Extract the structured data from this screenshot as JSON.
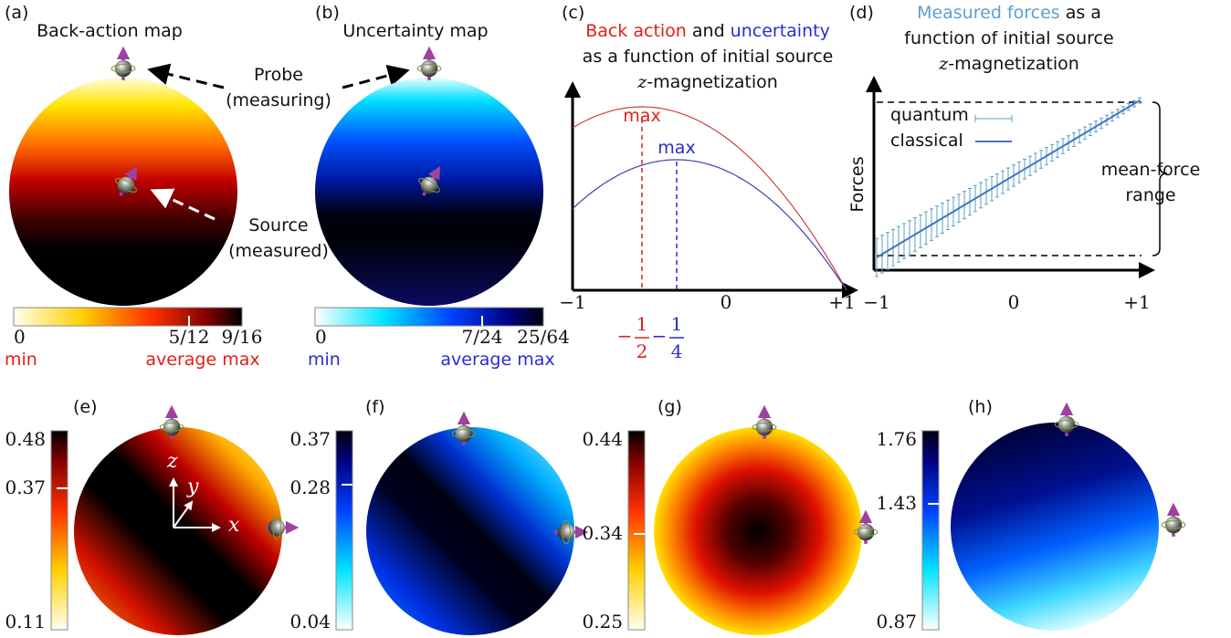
{
  "panel_a": {
    "label": "(a)",
    "title": "Back-action map",
    "colorbar": {
      "ticks": [
        "0",
        "5/12",
        "9/16"
      ],
      "min": "min",
      "average_max": "average max"
    }
  },
  "panel_b": {
    "label": "(b)",
    "title": "Uncertainty map",
    "colorbar": {
      "ticks": [
        "0",
        "7/24",
        "25/64"
      ],
      "min": "min",
      "average_max": "average max"
    }
  },
  "annotations": {
    "probe": [
      "Probe",
      "(measuring)"
    ],
    "source": [
      "Source",
      "(measured)"
    ]
  },
  "panel_c": {
    "label": "(c)",
    "title": {
      "back_action": "Back action",
      "and": " and ",
      "uncertainty": "uncertainty",
      "line2": "as a function of initial source",
      "z": "z",
      "line3": "-magnetization"
    },
    "max_red": "max",
    "max_blue": "max",
    "xticks": [
      "−1",
      "0",
      "+1"
    ],
    "fraction_red": {
      "sign": "−",
      "numerator": "1",
      "denominator": "2"
    },
    "fraction_blue": {
      "sign": "−",
      "numerator": "1",
      "denominator": "4"
    }
  },
  "panel_d": {
    "label": "(d)",
    "title": {
      "measured": "Measured forces",
      "rest": " as a",
      "line2": "function of initial source",
      "z": "z",
      "line3": "-magnetization"
    },
    "y_label": "Forces",
    "legend": [
      "quantum",
      "classical"
    ],
    "range_label": [
      "mean-force",
      "range"
    ],
    "xticks": [
      "−1",
      "0",
      "+1"
    ]
  },
  "panel_e": {
    "label": "(e)",
    "colorbar_ticks": [
      "0.48",
      "0.37",
      "0.11"
    ],
    "axes": [
      "z",
      "y",
      "x"
    ]
  },
  "panel_f": {
    "label": "(f)",
    "colorbar_ticks": [
      "0.37",
      "0.28",
      "0.04"
    ]
  },
  "panel_g": {
    "label": "(g)",
    "colorbar_ticks": [
      "0.44",
      "0.34",
      "0.25"
    ]
  },
  "panel_h": {
    "label": "(h)",
    "colorbar_ticks": [
      "1.76",
      "1.43",
      "0.87"
    ]
  }
}
